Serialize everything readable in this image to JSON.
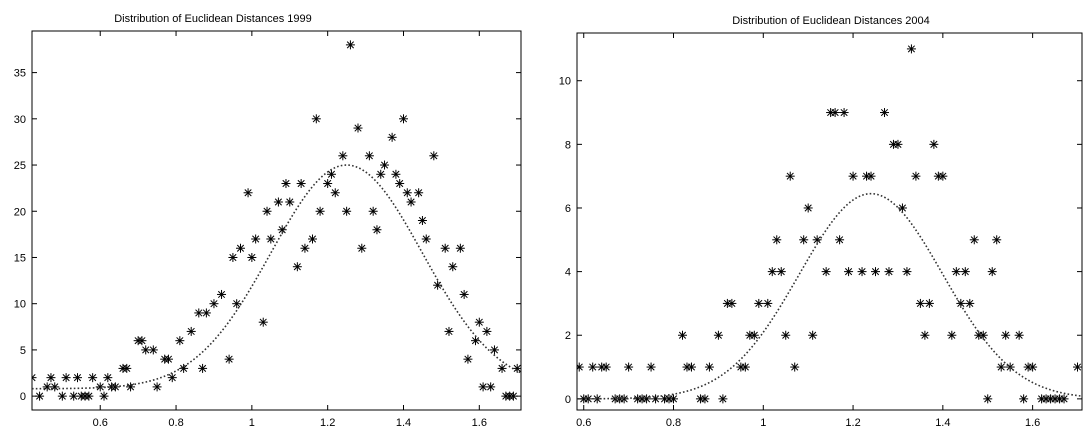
{
  "chart_data": [
    {
      "type": "scatter",
      "title": "Distribution of Euclidean Distances 1999",
      "xlabel": "",
      "ylabel": "",
      "xlim": [
        0.42,
        1.71
      ],
      "ylim": [
        -1.5,
        39.5
      ],
      "x_ticks": [
        0.6,
        0.8,
        1,
        1.2,
        1.4,
        1.6
      ],
      "y_ticks": [
        0,
        5,
        10,
        15,
        20,
        25,
        30,
        35
      ],
      "grid": false,
      "marker": "asterisk",
      "series": [
        {
          "kind": "points",
          "points": [
            [
              0.42,
              2
            ],
            [
              0.44,
              0
            ],
            [
              0.46,
              1
            ],
            [
              0.47,
              2
            ],
            [
              0.48,
              1
            ],
            [
              0.5,
              0
            ],
            [
              0.51,
              2
            ],
            [
              0.53,
              0
            ],
            [
              0.54,
              2
            ],
            [
              0.55,
              0
            ],
            [
              0.56,
              0
            ],
            [
              0.57,
              0
            ],
            [
              0.58,
              2
            ],
            [
              0.6,
              1
            ],
            [
              0.61,
              0
            ],
            [
              0.62,
              2
            ],
            [
              0.63,
              1
            ],
            [
              0.64,
              1
            ],
            [
              0.66,
              3
            ],
            [
              0.67,
              3
            ],
            [
              0.68,
              1
            ],
            [
              0.7,
              6
            ],
            [
              0.71,
              6
            ],
            [
              0.72,
              5
            ],
            [
              0.74,
              5
            ],
            [
              0.75,
              1
            ],
            [
              0.77,
              4
            ],
            [
              0.78,
              4
            ],
            [
              0.79,
              2
            ],
            [
              0.81,
              6
            ],
            [
              0.82,
              3
            ],
            [
              0.84,
              7
            ],
            [
              0.86,
              9
            ],
            [
              0.87,
              3
            ],
            [
              0.88,
              9
            ],
            [
              0.9,
              10
            ],
            [
              0.92,
              11
            ],
            [
              0.94,
              4
            ],
            [
              0.95,
              15
            ],
            [
              0.96,
              10
            ],
            [
              0.97,
              16
            ],
            [
              0.99,
              22
            ],
            [
              1.0,
              15
            ],
            [
              1.01,
              17
            ],
            [
              1.03,
              8
            ],
            [
              1.04,
              20
            ],
            [
              1.05,
              17
            ],
            [
              1.07,
              21
            ],
            [
              1.08,
              18
            ],
            [
              1.09,
              23
            ],
            [
              1.1,
              21
            ],
            [
              1.12,
              14
            ],
            [
              1.13,
              23
            ],
            [
              1.14,
              16
            ],
            [
              1.16,
              17
            ],
            [
              1.17,
              30
            ],
            [
              1.18,
              20
            ],
            [
              1.2,
              23
            ],
            [
              1.21,
              24
            ],
            [
              1.22,
              22
            ],
            [
              1.24,
              26
            ],
            [
              1.25,
              20
            ],
            [
              1.26,
              38
            ],
            [
              1.28,
              29
            ],
            [
              1.29,
              16
            ],
            [
              1.31,
              26
            ],
            [
              1.32,
              20
            ],
            [
              1.33,
              18
            ],
            [
              1.34,
              24
            ],
            [
              1.35,
              25
            ],
            [
              1.37,
              28
            ],
            [
              1.38,
              24
            ],
            [
              1.39,
              23
            ],
            [
              1.4,
              30
            ],
            [
              1.41,
              22
            ],
            [
              1.42,
              21
            ],
            [
              1.44,
              22
            ],
            [
              1.45,
              19
            ],
            [
              1.46,
              17
            ],
            [
              1.48,
              26
            ],
            [
              1.49,
              12
            ],
            [
              1.51,
              16
            ],
            [
              1.52,
              7
            ],
            [
              1.53,
              14
            ],
            [
              1.55,
              16
            ],
            [
              1.56,
              11
            ],
            [
              1.57,
              4
            ],
            [
              1.59,
              6
            ],
            [
              1.6,
              8
            ],
            [
              1.61,
              1
            ],
            [
              1.62,
              7
            ],
            [
              1.63,
              1
            ],
            [
              1.64,
              5
            ],
            [
              1.66,
              3
            ],
            [
              1.67,
              0
            ],
            [
              1.68,
              0
            ],
            [
              1.69,
              0
            ],
            [
              1.7,
              3
            ]
          ]
        },
        {
          "kind": "curve",
          "mean": 1.25,
          "sd": 0.2,
          "peak": 25,
          "floor": 0.8
        }
      ]
    },
    {
      "type": "scatter",
      "title": "Distribution of Euclidean Distances 2004",
      "xlabel": "",
      "ylabel": "",
      "xlim": [
        0.585,
        1.71
      ],
      "ylim": [
        -0.35,
        11.5
      ],
      "x_ticks": [
        0.6,
        0.8,
        1,
        1.2,
        1.4,
        1.6
      ],
      "y_ticks": [
        0,
        2,
        4,
        6,
        8,
        10
      ],
      "grid": false,
      "marker": "asterisk",
      "series": [
        {
          "kind": "points",
          "points": [
            [
              0.59,
              1
            ],
            [
              0.6,
              0
            ],
            [
              0.61,
              0
            ],
            [
              0.62,
              1
            ],
            [
              0.63,
              0
            ],
            [
              0.64,
              1
            ],
            [
              0.65,
              1
            ],
            [
              0.67,
              0
            ],
            [
              0.68,
              0
            ],
            [
              0.69,
              0
            ],
            [
              0.7,
              1
            ],
            [
              0.72,
              0
            ],
            [
              0.73,
              0
            ],
            [
              0.74,
              0
            ],
            [
              0.75,
              1
            ],
            [
              0.76,
              0
            ],
            [
              0.78,
              0
            ],
            [
              0.79,
              0
            ],
            [
              0.8,
              0
            ],
            [
              0.82,
              2
            ],
            [
              0.83,
              1
            ],
            [
              0.84,
              1
            ],
            [
              0.86,
              0
            ],
            [
              0.87,
              0
            ],
            [
              0.88,
              1
            ],
            [
              0.9,
              2
            ],
            [
              0.91,
              0
            ],
            [
              0.92,
              3
            ],
            [
              0.93,
              3
            ],
            [
              0.95,
              1
            ],
            [
              0.96,
              1
            ],
            [
              0.97,
              2
            ],
            [
              0.98,
              2
            ],
            [
              0.99,
              3
            ],
            [
              1.01,
              3
            ],
            [
              1.02,
              4
            ],
            [
              1.03,
              5
            ],
            [
              1.04,
              4
            ],
            [
              1.05,
              2
            ],
            [
              1.06,
              7
            ],
            [
              1.07,
              1
            ],
            [
              1.09,
              5
            ],
            [
              1.1,
              6
            ],
            [
              1.11,
              2
            ],
            [
              1.12,
              5
            ],
            [
              1.14,
              4
            ],
            [
              1.15,
              9
            ],
            [
              1.16,
              9
            ],
            [
              1.17,
              5
            ],
            [
              1.18,
              9
            ],
            [
              1.19,
              4
            ],
            [
              1.2,
              7
            ],
            [
              1.22,
              4
            ],
            [
              1.23,
              7
            ],
            [
              1.24,
              7
            ],
            [
              1.25,
              4
            ],
            [
              1.27,
              9
            ],
            [
              1.28,
              4
            ],
            [
              1.29,
              8
            ],
            [
              1.3,
              8
            ],
            [
              1.31,
              6
            ],
            [
              1.32,
              4
            ],
            [
              1.33,
              11
            ],
            [
              1.34,
              7
            ],
            [
              1.35,
              3
            ],
            [
              1.36,
              2
            ],
            [
              1.37,
              3
            ],
            [
              1.38,
              8
            ],
            [
              1.39,
              7
            ],
            [
              1.4,
              7
            ],
            [
              1.42,
              2
            ],
            [
              1.43,
              4
            ],
            [
              1.44,
              3
            ],
            [
              1.45,
              4
            ],
            [
              1.46,
              3
            ],
            [
              1.47,
              5
            ],
            [
              1.48,
              2
            ],
            [
              1.49,
              2
            ],
            [
              1.5,
              0
            ],
            [
              1.51,
              4
            ],
            [
              1.52,
              5
            ],
            [
              1.53,
              1
            ],
            [
              1.54,
              2
            ],
            [
              1.55,
              1
            ],
            [
              1.57,
              2
            ],
            [
              1.58,
              0
            ],
            [
              1.59,
              1
            ],
            [
              1.6,
              1
            ],
            [
              1.62,
              0
            ],
            [
              1.63,
              0
            ],
            [
              1.64,
              0
            ],
            [
              1.65,
              0
            ],
            [
              1.66,
              0
            ],
            [
              1.67,
              0
            ],
            [
              1.7,
              1
            ]
          ]
        },
        {
          "kind": "curve",
          "mean": 1.24,
          "sd": 0.16,
          "peak": 6.45,
          "floor": 0
        }
      ]
    }
  ]
}
